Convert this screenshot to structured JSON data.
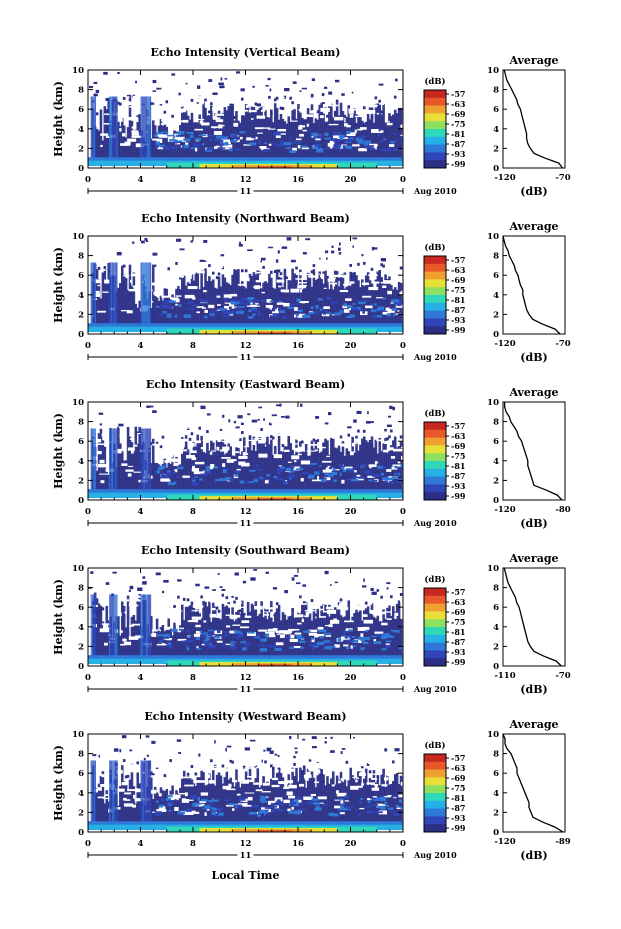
{
  "figure": {
    "shared_xlabel": "Local Time",
    "date_label": "Aug 2010",
    "day_label": "11"
  },
  "chart_data": [
    {
      "type": "heatmap",
      "title": "Echo Intensity (Vertical Beam)",
      "xlabel": "",
      "ylabel": "Height (km)",
      "xlim": [
        0,
        24
      ],
      "ylim": [
        0,
        10
      ],
      "xticks": [
        "0",
        "4",
        "8",
        "12",
        "16",
        "20",
        "0"
      ],
      "yticks": [
        "0",
        "2",
        "4",
        "6",
        "8",
        "10"
      ],
      "colorbar": {
        "label": "(dB)",
        "ticks": [
          "-57",
          "-63",
          "-69",
          "-75",
          "-81",
          "-87",
          "-93",
          "-99"
        ]
      },
      "profile": {
        "title": "Average",
        "xlabel": "(dB)",
        "xlim": [
          -120,
          -70
        ],
        "xticks": [
          "-120",
          "-70"
        ],
        "heights": [
          0.0,
          0.5,
          1.0,
          1.5,
          2.0,
          2.5,
          3.0,
          3.5,
          4.0,
          4.5,
          5.0,
          5.5,
          6.0,
          6.5,
          7.0,
          7.5,
          8.0,
          8.5,
          9.0,
          9.5,
          10.0
        ],
        "values": [
          -72,
          -75,
          -86,
          -95,
          -98,
          -100,
          -101,
          -101,
          -102,
          -103,
          -104,
          -105,
          -106,
          -108,
          -109,
          -111,
          -113,
          -115,
          -117,
          -118,
          -119
        ]
      }
    },
    {
      "type": "heatmap",
      "title": "Echo Intensity (Northward Beam)",
      "xlabel": "",
      "ylabel": "Height (km)",
      "xlim": [
        0,
        24
      ],
      "ylim": [
        0,
        10
      ],
      "xticks": [
        "0",
        "4",
        "8",
        "12",
        "16",
        "20",
        "0"
      ],
      "yticks": [
        "0",
        "2",
        "4",
        "6",
        "8",
        "10"
      ],
      "colorbar": {
        "label": "(dB)",
        "ticks": [
          "-57",
          "-63",
          "-69",
          "-75",
          "-81",
          "-87",
          "-93",
          "-99"
        ]
      },
      "profile": {
        "title": "Average",
        "xlabel": "(dB)",
        "xlim": [
          -120,
          -70
        ],
        "xticks": [
          "-120",
          "-70"
        ],
        "heights": [
          0.0,
          0.5,
          1.0,
          1.5,
          2.0,
          2.5,
          3.0,
          3.5,
          4.0,
          4.5,
          5.0,
          5.5,
          6.0,
          6.5,
          7.0,
          7.5,
          8.0,
          8.5,
          9.0,
          9.5,
          10.0
        ],
        "values": [
          -74,
          -78,
          -88,
          -96,
          -99,
          -101,
          -102,
          -103,
          -104,
          -104,
          -106,
          -107,
          -108,
          -110,
          -111,
          -113,
          -115,
          -116,
          -118,
          -119,
          -120
        ]
      }
    },
    {
      "type": "heatmap",
      "title": "Echo Intensity (Eastward Beam)",
      "xlabel": "",
      "ylabel": "Height (km)",
      "xlim": [
        0,
        24
      ],
      "ylim": [
        0,
        10
      ],
      "xticks": [
        "0",
        "4",
        "8",
        "12",
        "16",
        "20",
        "0"
      ],
      "yticks": [
        "0",
        "2",
        "4",
        "6",
        "8",
        "10"
      ],
      "colorbar": {
        "label": "(dB)",
        "ticks": [
          "-57",
          "-63",
          "-69",
          "-75",
          "-81",
          "-87",
          "-93",
          "-99"
        ]
      },
      "profile": {
        "title": "Average",
        "xlabel": "(dB)",
        "xlim": [
          -120,
          -80
        ],
        "xticks": [
          "-120",
          "-80"
        ],
        "heights": [
          0.0,
          0.5,
          1.0,
          1.5,
          2.0,
          2.5,
          3.0,
          3.5,
          4.0,
          4.5,
          5.0,
          5.5,
          6.0,
          6.5,
          7.0,
          7.5,
          8.0,
          8.5,
          9.0,
          9.5,
          10.0
        ],
        "values": [
          -82,
          -85,
          -92,
          -100,
          -101,
          -102,
          -103,
          -104,
          -104,
          -105,
          -106,
          -107,
          -108,
          -110,
          -111,
          -113,
          -115,
          -116,
          -118,
          -119,
          -119
        ]
      }
    },
    {
      "type": "heatmap",
      "title": "Echo Intensity (Southward Beam)",
      "xlabel": "",
      "ylabel": "Height (km)",
      "xlim": [
        0,
        24
      ],
      "ylim": [
        0,
        10
      ],
      "xticks": [
        "0",
        "4",
        "8",
        "12",
        "16",
        "20",
        "0"
      ],
      "yticks": [
        "0",
        "2",
        "4",
        "6",
        "8",
        "10"
      ],
      "colorbar": {
        "label": "(dB)",
        "ticks": [
          "-57",
          "-63",
          "-69",
          "-75",
          "-81",
          "-87",
          "-93",
          "-99"
        ]
      },
      "profile": {
        "title": "Average",
        "xlabel": "(dB)",
        "xlim": [
          -120,
          -70
        ],
        "xticks": [
          "-110",
          "-70"
        ],
        "heights": [
          0.0,
          0.5,
          1.0,
          1.5,
          2.0,
          2.5,
          3.0,
          3.5,
          4.0,
          4.5,
          5.0,
          5.5,
          6.0,
          6.5,
          7.0,
          7.5,
          8.0,
          8.5,
          9.0,
          9.5,
          10.0
        ],
        "values": [
          -73,
          -77,
          -87,
          -95,
          -98,
          -100,
          -101,
          -102,
          -103,
          -104,
          -105,
          -106,
          -107,
          -109,
          -110,
          -112,
          -114,
          -116,
          -117,
          -118,
          -119
        ]
      }
    },
    {
      "type": "heatmap",
      "title": "Echo Intensity (Westward Beam)",
      "xlabel": "",
      "ylabel": "Height (km)",
      "xlim": [
        0,
        24
      ],
      "ylim": [
        0,
        10
      ],
      "xticks": [
        "0",
        "4",
        "8",
        "12",
        "16",
        "20",
        "0"
      ],
      "yticks": [
        "0",
        "2",
        "4",
        "6",
        "8",
        "10"
      ],
      "colorbar": {
        "label": "(dB)",
        "ticks": [
          "-57",
          "-63",
          "-69",
          "-75",
          "-81",
          "-87",
          "-93",
          "-99"
        ]
      },
      "profile": {
        "title": "Average",
        "xlabel": "(dB)",
        "xlim": [
          -120,
          -89
        ],
        "xticks": [
          "-120",
          "-89"
        ],
        "heights": [
          0.0,
          0.5,
          1.0,
          1.5,
          2.0,
          2.5,
          3.0,
          3.5,
          4.0,
          4.5,
          5.0,
          5.5,
          6.0,
          6.5,
          7.0,
          7.5,
          8.0,
          8.5,
          9.0,
          9.5,
          10.0
        ],
        "values": [
          -90,
          -94,
          -100,
          -105,
          -106,
          -107,
          -107,
          -108,
          -109,
          -110,
          -111,
          -112,
          -113,
          -113,
          -114,
          -115,
          -116,
          -118,
          -119,
          -119,
          -120
        ]
      }
    }
  ],
  "colors": {
    "palette": [
      "#2b2f86",
      "#2f45b8",
      "#2f78d8",
      "#27b0e6",
      "#2fd8b8",
      "#8de060",
      "#e8e038",
      "#f0a030",
      "#e85828",
      "#c82820"
    ]
  }
}
